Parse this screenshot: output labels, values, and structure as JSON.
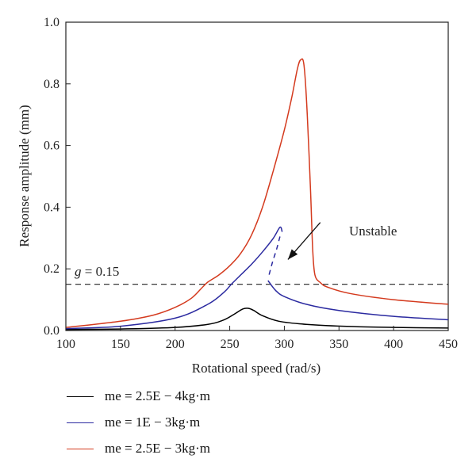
{
  "chart_data": {
    "type": "line",
    "xlabel": "Rotational speed (rad/s)",
    "ylabel": "Response amplitude (mm)",
    "xlim": [
      100,
      450
    ],
    "ylim": [
      0,
      1.0
    ],
    "x_ticks": [
      "100",
      "150",
      "200",
      "250",
      "300",
      "350",
      "400",
      "450"
    ],
    "y_ticks": [
      "0.0",
      "0.2",
      "0.4",
      "0.6",
      "0.8",
      "1.0"
    ],
    "grid": false,
    "legend_position": "bottom-left outside",
    "series": [
      {
        "name": "me = 2.5E − 4kg·m",
        "color": "#000000",
        "points": [
          [
            100,
            0.003
          ],
          [
            150,
            0.005
          ],
          [
            200,
            0.01
          ],
          [
            230,
            0.02
          ],
          [
            245,
            0.035
          ],
          [
            255,
            0.055
          ],
          [
            262,
            0.07
          ],
          [
            267,
            0.072
          ],
          [
            272,
            0.065
          ],
          [
            280,
            0.048
          ],
          [
            295,
            0.03
          ],
          [
            320,
            0.02
          ],
          [
            360,
            0.013
          ],
          [
            400,
            0.01
          ],
          [
            450,
            0.008
          ]
        ]
      },
      {
        "name": "me = 1E − 3kg·m",
        "color": "#2b2aa0",
        "points": [
          [
            100,
            0.006
          ],
          [
            150,
            0.014
          ],
          [
            200,
            0.04
          ],
          [
            230,
            0.085
          ],
          [
            245,
            0.125
          ],
          [
            252,
            0.152
          ],
          [
            260,
            0.18
          ],
          [
            270,
            0.215
          ],
          [
            280,
            0.255
          ],
          [
            290,
            0.3
          ],
          [
            296,
            0.335
          ],
          [
            298,
            0.32
          ]
        ],
        "unstable_points": [
          [
            296,
            0.305
          ],
          [
            293,
            0.265
          ],
          [
            289,
            0.22
          ],
          [
            286,
            0.18
          ]
        ],
        "lower_branch": [
          [
            285,
            0.162
          ],
          [
            292,
            0.13
          ],
          [
            300,
            0.11
          ],
          [
            320,
            0.085
          ],
          [
            350,
            0.065
          ],
          [
            400,
            0.046
          ],
          [
            450,
            0.035
          ]
        ]
      },
      {
        "name": "me = 2.5E − 3kg·m",
        "color": "#d43a1e",
        "points": [
          [
            100,
            0.01
          ],
          [
            150,
            0.03
          ],
          [
            180,
            0.05
          ],
          [
            200,
            0.075
          ],
          [
            215,
            0.105
          ],
          [
            225,
            0.14
          ],
          [
            230,
            0.157
          ],
          [
            240,
            0.18
          ],
          [
            250,
            0.21
          ],
          [
            260,
            0.25
          ],
          [
            270,
            0.31
          ],
          [
            280,
            0.4
          ],
          [
            290,
            0.52
          ],
          [
            300,
            0.65
          ],
          [
            307,
            0.76
          ],
          [
            312,
            0.85
          ],
          [
            315,
            0.878
          ],
          [
            318,
            0.86
          ],
          [
            321,
            0.7
          ],
          [
            324,
            0.45
          ],
          [
            326,
            0.26
          ],
          [
            328,
            0.18
          ],
          [
            333,
            0.155
          ],
          [
            340,
            0.14
          ],
          [
            360,
            0.12
          ],
          [
            400,
            0.1
          ],
          [
            450,
            0.085
          ]
        ]
      }
    ],
    "reference_line": {
      "y": 0.15,
      "style": "dashed",
      "label": "g = 0.15"
    },
    "annotation": {
      "text": "Unstable",
      "from": [
        330,
        0.34
      ],
      "to": [
        296,
        0.22
      ]
    }
  }
}
